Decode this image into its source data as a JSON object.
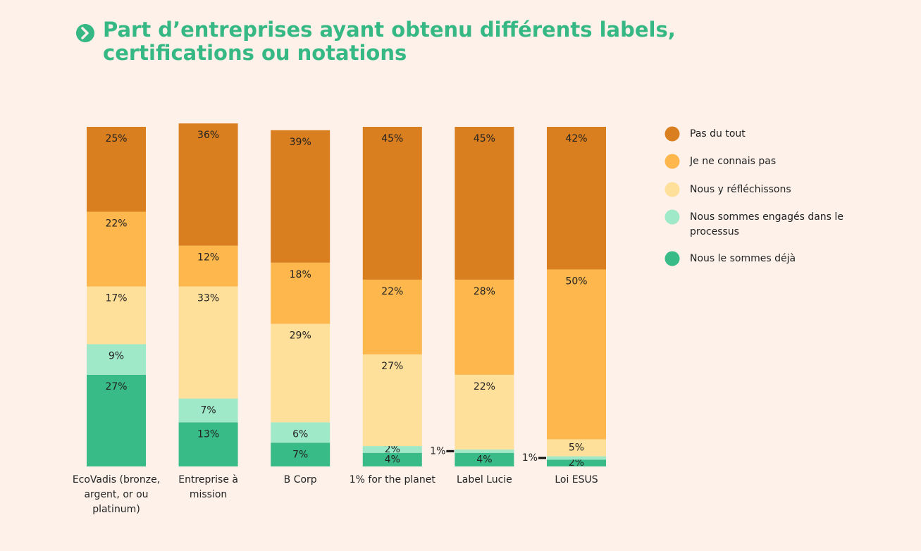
{
  "chart_data": {
    "type": "stacked_bar",
    "title": "Part d’entreprises ayant obtenu différents labels, certifications ou notations",
    "categories": [
      "EcoVadis (bronze, argent, or ou platinum)",
      "Entreprise à mission",
      "B Corp",
      "1% for the planet",
      "Label Lucie",
      "Loi ESUS"
    ],
    "ylim": [
      0,
      100
    ],
    "series": [
      {
        "name": "Pas du tout",
        "color": "#d97f1f",
        "values": [
          25,
          36,
          39,
          45,
          45,
          42
        ],
        "value_labels": [
          "25%",
          "36%",
          "39%",
          "45%",
          "45%",
          "42%"
        ]
      },
      {
        "name": "Je ne connais pas",
        "color": "#fdb74d",
        "values": [
          22,
          12,
          18,
          22,
          28,
          50
        ],
        "value_labels": [
          "22%",
          "12%",
          "18%",
          "22%",
          "28%",
          "50%"
        ]
      },
      {
        "name": "Nous y réfléchissons",
        "color": "#fee09a",
        "values": [
          17,
          33,
          29,
          27,
          22,
          5
        ],
        "value_labels": [
          "17%",
          "33%",
          "29%",
          "27%",
          "22%",
          "5%"
        ]
      },
      {
        "name": "Nous sommes engagés dans le processus",
        "color": "#9fe8c8",
        "values": [
          9,
          7,
          6,
          2,
          1,
          1
        ],
        "value_labels": [
          "9%",
          "7%",
          "6%",
          "2%",
          "1%",
          "1%"
        ]
      },
      {
        "name": "Nous le sommes déjà",
        "color": "#38bb87",
        "values": [
          27,
          13,
          7,
          4,
          4,
          2
        ],
        "value_labels": [
          "27%",
          "13%",
          "7%",
          "4%",
          "4%",
          "2%"
        ]
      }
    ],
    "legend": "right"
  }
}
